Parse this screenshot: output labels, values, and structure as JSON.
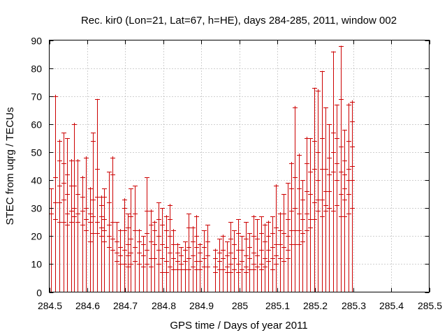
{
  "chart_data": {
    "type": "errorbar",
    "title": "Rec. kir0 (Lon=21, Lat=67, h=HE), days 284-285, 2011, window 002",
    "xlabel": "GPS time / Days of year 2011",
    "ylabel": "STEC from uqrg / TECUs",
    "xlim": [
      284.5,
      285.5
    ],
    "ylim": [
      0,
      90
    ],
    "xticks": [
      "284.5",
      "284.6",
      "284.7",
      "284.8",
      "284.9",
      "285",
      "285.1",
      "285.2",
      "285.3",
      "285.4",
      "285.5"
    ],
    "yticks": [
      "0",
      "10",
      "20",
      "30",
      "40",
      "50",
      "60",
      "70",
      "80",
      "90"
    ],
    "grid": true,
    "series_color": "#cc0000",
    "bars": [
      {
        "x": 284.505,
        "high": 37,
        "low": 0,
        "marks": [
          37,
          30,
          28
        ]
      },
      {
        "x": 284.515,
        "high": 70.5,
        "low": 0,
        "marks": [
          70,
          41,
          32,
          26
        ]
      },
      {
        "x": 284.527,
        "high": 54.5,
        "low": 0,
        "marks": [
          54,
          47,
          38,
          32,
          25
        ]
      },
      {
        "x": 284.537,
        "high": 57,
        "low": 0,
        "marks": [
          57,
          46,
          39,
          33,
          25
        ]
      },
      {
        "x": 284.547,
        "high": 55,
        "low": 0,
        "marks": [
          55,
          42,
          35,
          28,
          24
        ]
      },
      {
        "x": 284.557,
        "high": 47.5,
        "low": 0,
        "marks": [
          47,
          38,
          29,
          25
        ]
      },
      {
        "x": 284.565,
        "high": 60.5,
        "low": 0,
        "marks": [
          60,
          38,
          30,
          27
        ]
      },
      {
        "x": 284.575,
        "high": 47.5,
        "low": 0,
        "marks": [
          47,
          35,
          28,
          25
        ]
      },
      {
        "x": 284.587,
        "high": 41.5,
        "low": 0,
        "marks": [
          41,
          34,
          29,
          24
        ]
      },
      {
        "x": 284.597,
        "high": 48.5,
        "low": 0,
        "marks": [
          48,
          30,
          26,
          22
        ]
      },
      {
        "x": 284.607,
        "high": 37.5,
        "low": 0,
        "marks": [
          37,
          28,
          25,
          18
        ]
      },
      {
        "x": 284.615,
        "high": 57,
        "low": 0,
        "marks": [
          57,
          54,
          33,
          27,
          21
        ]
      },
      {
        "x": 284.625,
        "high": 69,
        "low": 0,
        "marks": [
          69,
          44,
          34,
          25,
          21
        ]
      },
      {
        "x": 284.637,
        "high": 34.5,
        "low": 0,
        "marks": [
          34,
          31,
          27,
          23,
          20
        ]
      },
      {
        "x": 284.645,
        "high": 37,
        "low": 0,
        "marks": [
          37,
          34,
          26,
          22,
          18
        ]
      },
      {
        "x": 284.657,
        "high": 43,
        "low": 0,
        "marks": [
          43,
          32,
          24,
          20,
          16
        ]
      },
      {
        "x": 284.667,
        "high": 48.5,
        "low": 0,
        "marks": [
          48,
          42,
          25,
          19,
          15
        ]
      },
      {
        "x": 284.677,
        "high": 25,
        "low": 0,
        "marks": [
          25,
          18,
          14,
          11
        ]
      },
      {
        "x": 284.687,
        "high": 22.5,
        "low": 0,
        "marks": [
          22,
          16,
          13,
          10
        ]
      },
      {
        "x": 284.697,
        "high": 33.5,
        "low": 0,
        "marks": [
          33,
          30,
          22,
          15,
          10
        ]
      },
      {
        "x": 284.707,
        "high": 28,
        "low": 0,
        "marks": [
          28,
          23,
          17,
          13,
          9
        ]
      },
      {
        "x": 284.715,
        "high": 37,
        "low": 0,
        "marks": [
          37,
          27,
          19,
          14,
          10
        ]
      },
      {
        "x": 284.725,
        "high": 38,
        "low": 0,
        "marks": [
          38,
          28,
          22,
          16,
          11
        ]
      },
      {
        "x": 284.737,
        "high": 22.5,
        "low": 0,
        "marks": [
          22,
          18,
          14,
          10
        ]
      },
      {
        "x": 284.747,
        "high": 20,
        "low": 0,
        "marks": [
          20,
          17,
          13,
          9
        ]
      },
      {
        "x": 284.757,
        "high": 41,
        "low": 0,
        "marks": [
          41,
          29,
          21,
          15,
          10
        ]
      },
      {
        "x": 284.767,
        "high": 29.5,
        "low": 0,
        "marks": [
          29,
          24,
          18,
          12,
          9
        ]
      },
      {
        "x": 284.777,
        "high": 25.5,
        "low": 0,
        "marks": [
          25,
          22,
          17,
          12
        ]
      },
      {
        "x": 284.787,
        "high": 32,
        "low": 0,
        "marks": [
          32,
          26,
          20,
          15,
          10
        ]
      },
      {
        "x": 284.797,
        "high": 30,
        "low": 0,
        "marks": [
          30,
          24,
          17,
          12,
          7
        ]
      },
      {
        "x": 284.807,
        "high": 27.5,
        "low": 0,
        "marks": [
          27,
          22,
          16,
          11,
          7
        ]
      },
      {
        "x": 284.817,
        "high": 31.5,
        "low": 0,
        "marks": [
          31,
          26,
          20,
          14,
          9
        ]
      },
      {
        "x": 284.827,
        "high": 22.5,
        "low": 0,
        "marks": [
          22,
          17,
          12,
          8
        ]
      },
      {
        "x": 284.837,
        "high": 17.5,
        "low": 0,
        "marks": [
          17,
          14,
          11,
          8
        ]
      },
      {
        "x": 284.847,
        "high": 16,
        "low": 0,
        "marks": [
          16,
          13,
          10,
          8
        ]
      },
      {
        "x": 284.857,
        "high": 18,
        "low": 0,
        "marks": [
          18,
          15,
          11,
          8
        ]
      },
      {
        "x": 284.867,
        "high": 28,
        "low": 0,
        "marks": [
          28,
          23,
          16,
          12,
          8
        ]
      },
      {
        "x": 284.877,
        "high": 23.5,
        "low": 0,
        "marks": [
          23,
          18,
          13,
          9
        ]
      },
      {
        "x": 284.887,
        "high": 27.5,
        "low": 0,
        "marks": [
          27,
          20,
          16,
          11,
          8
        ]
      },
      {
        "x": 284.897,
        "high": 17.5,
        "low": 0,
        "marks": [
          17,
          14,
          11,
          8
        ]
      },
      {
        "x": 284.907,
        "high": 22,
        "low": 0,
        "marks": [
          22,
          16,
          12,
          9
        ]
      },
      {
        "x": 284.917,
        "high": 24,
        "low": 0,
        "marks": [
          24,
          18,
          13,
          9
        ]
      },
      {
        "x": 284.937,
        "high": 15.5,
        "low": 0,
        "marks": [
          15,
          12,
          9,
          7
        ]
      },
      {
        "x": 284.947,
        "high": 19,
        "low": 0,
        "marks": [
          19,
          14,
          11,
          8
        ]
      },
      {
        "x": 284.957,
        "high": 20.5,
        "low": 0,
        "marks": [
          20,
          15,
          12,
          8
        ]
      },
      {
        "x": 284.967,
        "high": 18,
        "low": 0,
        "marks": [
          18,
          13,
          9,
          7
        ]
      },
      {
        "x": 284.977,
        "high": 25,
        "low": 0,
        "marks": [
          25,
          19,
          14,
          10,
          7
        ]
      },
      {
        "x": 284.987,
        "high": 22,
        "low": 0,
        "marks": [
          22,
          17,
          12,
          8
        ]
      },
      {
        "x": 284.997,
        "high": 26,
        "low": 0,
        "marks": [
          26,
          21,
          15,
          10,
          7
        ]
      },
      {
        "x": 285.007,
        "high": 20,
        "low": 0,
        "marks": [
          20,
          15,
          11,
          8
        ]
      },
      {
        "x": 285.017,
        "high": 25,
        "low": 0,
        "marks": [
          25,
          19,
          13,
          9,
          7
        ]
      },
      {
        "x": 285.027,
        "high": 21,
        "low": 0,
        "marks": [
          21,
          16,
          12,
          8
        ]
      },
      {
        "x": 285.037,
        "high": 27.5,
        "low": 0,
        "marks": [
          27,
          20,
          14,
          10,
          8
        ]
      },
      {
        "x": 285.047,
        "high": 26,
        "low": 0,
        "marks": [
          26,
          19,
          13,
          9
        ]
      },
      {
        "x": 285.057,
        "high": 27,
        "low": 0,
        "marks": [
          27,
          21,
          15,
          10,
          8
        ]
      },
      {
        "x": 285.067,
        "high": 24.5,
        "low": 0,
        "marks": [
          24,
          18,
          12,
          9
        ]
      },
      {
        "x": 285.077,
        "high": 25.5,
        "low": 0,
        "marks": [
          25,
          20,
          15,
          11
        ]
      },
      {
        "x": 285.087,
        "high": 27,
        "low": 0,
        "marks": [
          27,
          21,
          16,
          12,
          8
        ]
      },
      {
        "x": 285.097,
        "high": 38.5,
        "low": 0,
        "marks": [
          38,
          23,
          17,
          13,
          10
        ]
      },
      {
        "x": 285.107,
        "high": 28.5,
        "low": 0,
        "marks": [
          28,
          22,
          17,
          12
        ]
      },
      {
        "x": 285.117,
        "high": 35,
        "low": 0,
        "marks": [
          35,
          28,
          21,
          16,
          11
        ]
      },
      {
        "x": 285.127,
        "high": 39,
        "low": 0,
        "marks": [
          39,
          26,
          20,
          15,
          12
        ]
      },
      {
        "x": 285.137,
        "high": 46.5,
        "low": 0,
        "marks": [
          46,
          37,
          29,
          22,
          17
        ]
      },
      {
        "x": 285.147,
        "high": 66.5,
        "low": 0,
        "marks": [
          66,
          41,
          30,
          22,
          17
        ]
      },
      {
        "x": 285.157,
        "high": 49.5,
        "low": 0,
        "marks": [
          49,
          37,
          28,
          22,
          17
        ]
      },
      {
        "x": 285.167,
        "high": 40,
        "low": 0,
        "marks": [
          40,
          33,
          26,
          21,
          18
        ]
      },
      {
        "x": 285.177,
        "high": 55.5,
        "low": 0,
        "marks": [
          55,
          46,
          36,
          28,
          22
        ]
      },
      {
        "x": 285.187,
        "high": 55,
        "low": 0,
        "marks": [
          55,
          43,
          35,
          26,
          23
        ]
      },
      {
        "x": 285.197,
        "high": 73,
        "low": 0,
        "marks": [
          73,
          54,
          44,
          32,
          26
        ]
      },
      {
        "x": 285.207,
        "high": 72.5,
        "low": 0,
        "marks": [
          72,
          50,
          40,
          33,
          29
        ]
      },
      {
        "x": 285.217,
        "high": 79,
        "low": 0,
        "marks": [
          79,
          55,
          44,
          33,
          27
        ]
      },
      {
        "x": 285.227,
        "high": 66,
        "low": 0,
        "marks": [
          66,
          44,
          36,
          31,
          29
        ]
      },
      {
        "x": 285.237,
        "high": 60,
        "low": 0,
        "marks": [
          60,
          48,
          42,
          36,
          30
        ]
      },
      {
        "x": 285.247,
        "high": 86,
        "low": 0,
        "marks": [
          86,
          57,
          50,
          43,
          29
        ]
      },
      {
        "x": 285.257,
        "high": 67,
        "low": 0,
        "marks": [
          67,
          55,
          46,
          40,
          31
        ]
      },
      {
        "x": 285.267,
        "high": 88,
        "low": 0,
        "marks": [
          88,
          69,
          52,
          43,
          35,
          27
        ]
      },
      {
        "x": 285.277,
        "high": 58,
        "low": 0,
        "marks": [
          58,
          47,
          42,
          37,
          33,
          27
        ]
      },
      {
        "x": 285.287,
        "high": 67.5,
        "low": 0,
        "marks": [
          67,
          54,
          44,
          40,
          35,
          28
        ]
      },
      {
        "x": 285.297,
        "high": 68.5,
        "low": 0,
        "marks": [
          68,
          61,
          52,
          45,
          40,
          30
        ]
      }
    ]
  }
}
